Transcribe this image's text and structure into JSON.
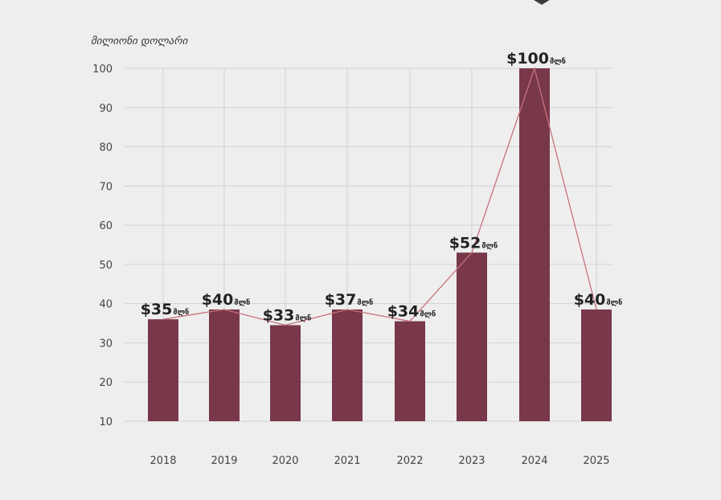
{
  "chart_data": {
    "type": "bar",
    "ylabel": "მილიონი დოლარი",
    "categories": [
      "2018",
      "2019",
      "2020",
      "2021",
      "2022",
      "2023",
      "2024",
      "2025"
    ],
    "values": [
      35,
      40,
      33,
      37,
      34,
      52,
      100,
      40
    ],
    "bar_display_values": [
      36,
      38.5,
      34.5,
      38.5,
      35.5,
      53,
      100,
      38.5
    ],
    "data_labels": [
      {
        "amount": "$35",
        "unit": "მლნ"
      },
      {
        "amount": "$40",
        "unit": "მლნ"
      },
      {
        "amount": "$33",
        "unit": "მლნ"
      },
      {
        "amount": "$37",
        "unit": "მლნ"
      },
      {
        "amount": "$34",
        "unit": "მლნ"
      },
      {
        "amount": "$52",
        "unit": "მლნ"
      },
      {
        "amount": "$100",
        "unit": "მლნ"
      },
      {
        "amount": "$40",
        "unit": "მლნ"
      }
    ],
    "yticks": [
      "10",
      "20",
      "30",
      "40",
      "50",
      "60",
      "70",
      "80",
      "90",
      "100"
    ],
    "ylim": [
      10,
      100
    ],
    "grid": true,
    "trend_line": true,
    "colors": {
      "bar": "#78384a",
      "line": "#c8717b",
      "grid": "#d3d1d3",
      "text": "#222222",
      "tick": "#444444"
    }
  }
}
